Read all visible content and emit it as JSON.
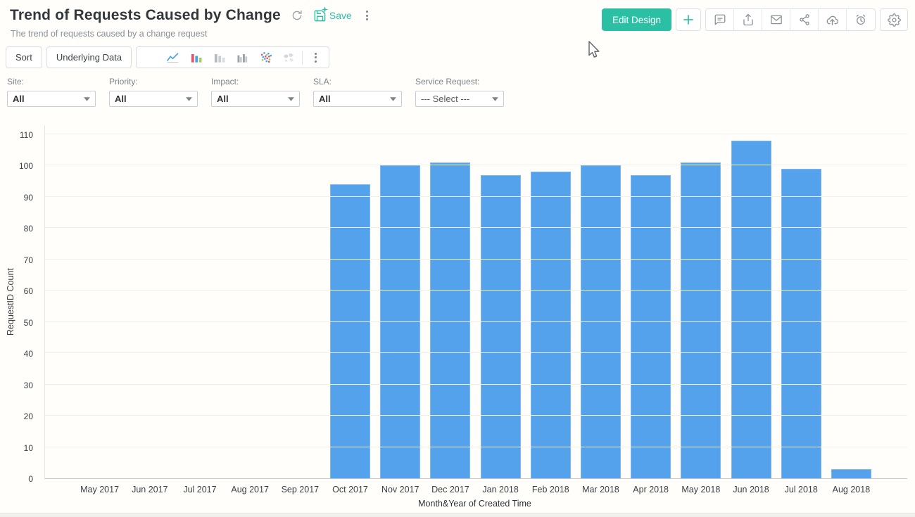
{
  "colors": {
    "accent": "#2bc0a4",
    "bar": "#55a2ec"
  },
  "header": {
    "title": "Trend of Requests Caused by Change",
    "subtitle": "The trend of requests caused by a change request",
    "save_label": "Save",
    "edit_design_label": "Edit Design",
    "action_icons": [
      "comment-icon",
      "export-icon",
      "mail-icon",
      "share-icon",
      "cloud-upload-icon",
      "alarm-icon"
    ]
  },
  "toolbar": {
    "sort_label": "Sort",
    "underlying_data_label": "Underlying Data",
    "chart_type_icons": [
      "pie-chart-icon",
      "line-chart-icon",
      "bar-chart-colored-icon",
      "bar-chart-gray-icon",
      "bar-chart-grouped-icon",
      "scatter-plot-icon",
      "map-chart-icon"
    ]
  },
  "filters": [
    {
      "label": "Site:",
      "value": "All",
      "placeholder": false
    },
    {
      "label": "Priority:",
      "value": "All",
      "placeholder": false
    },
    {
      "label": "Impact:",
      "value": "All",
      "placeholder": false
    },
    {
      "label": "SLA:",
      "value": "All",
      "placeholder": false
    },
    {
      "label": "Service Request:",
      "value": "--- Select ---",
      "placeholder": true
    }
  ],
  "chart_data": {
    "type": "bar",
    "categories": [
      "May 2017",
      "Jun 2017",
      "Jul 2017",
      "Aug 2017",
      "Sep 2017",
      "Oct 2017",
      "Nov 2017",
      "Dec 2017",
      "Jan 2018",
      "Feb 2018",
      "Mar 2018",
      "Apr 2018",
      "May 2018",
      "Jun 2018",
      "Jul 2018",
      "Aug 2018"
    ],
    "values": [
      0,
      0,
      0,
      0,
      0,
      94,
      100,
      101,
      97,
      98,
      100,
      97,
      101,
      108,
      99,
      3
    ],
    "title": "",
    "xlabel": "Month&Year of Created Time",
    "ylabel": "RequestID Count",
    "ylim": [
      0,
      110
    ],
    "ytick_step": 10,
    "grid": "horizontal",
    "legend": "none",
    "bar_color": "#55a2ec"
  }
}
